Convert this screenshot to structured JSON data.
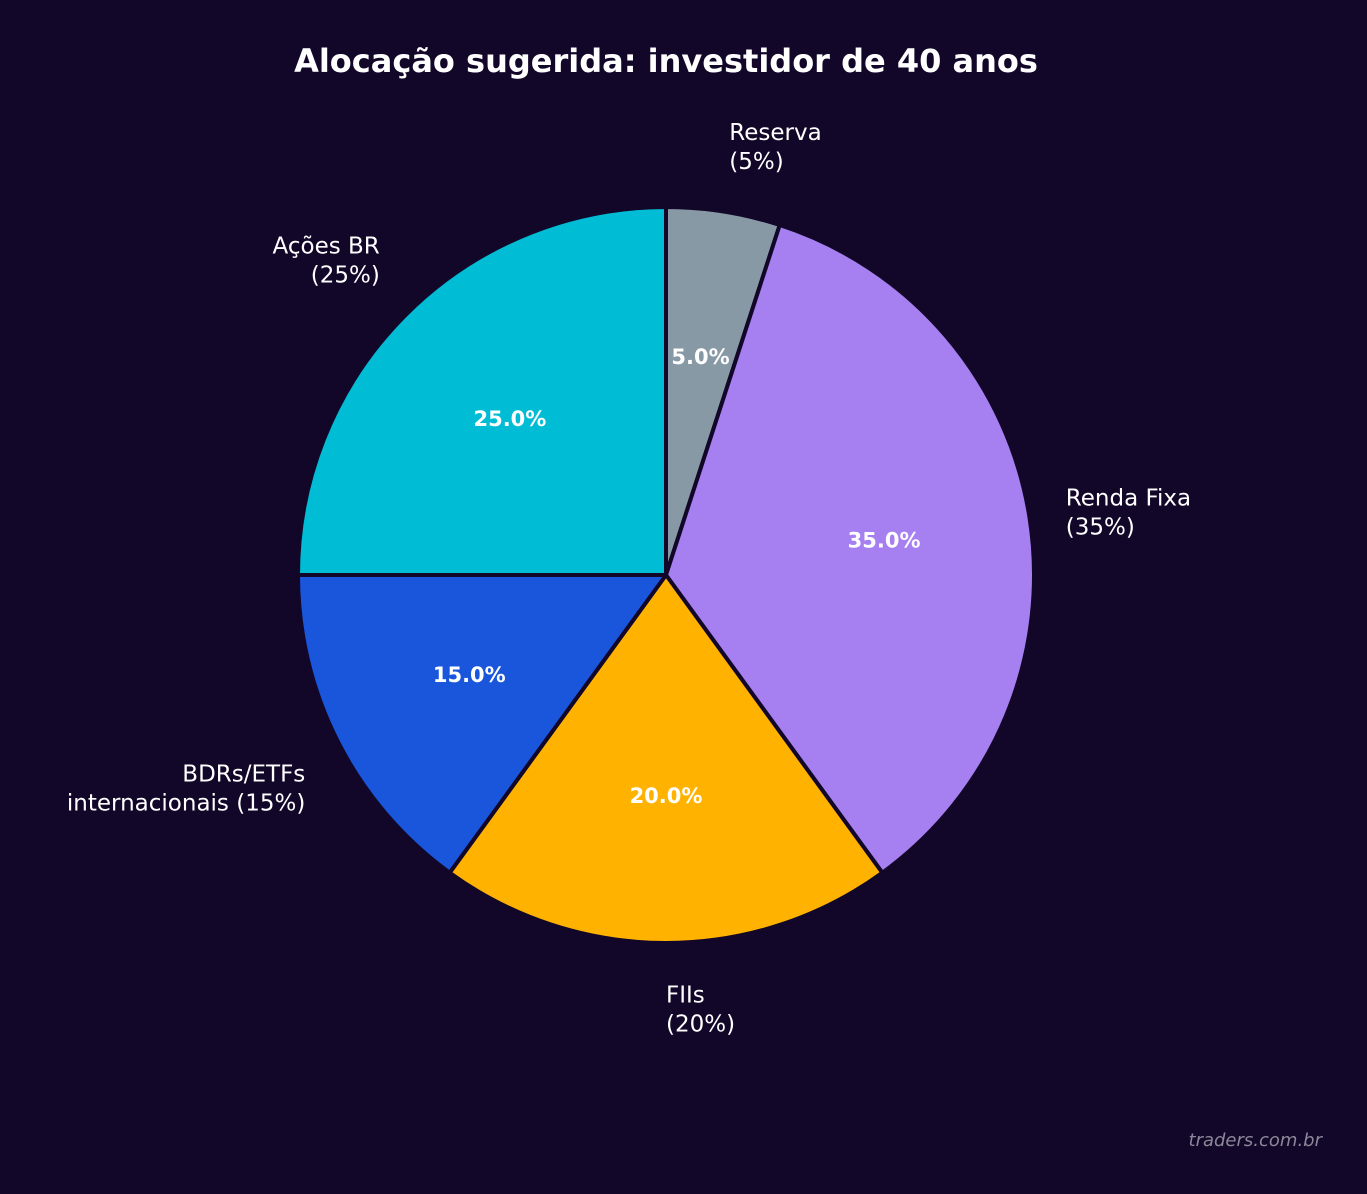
{
  "chart_data": {
    "type": "pie",
    "title": "Alocação sugerida: investidor de 40 anos",
    "start_angle_deg": 90,
    "direction": "clockwise",
    "slices": [
      {
        "label": [
          "Reserva",
          "(5%)"
        ],
        "value": 5,
        "pct_label": "5.0%",
        "color": "#8899a6"
      },
      {
        "label": [
          "Renda Fixa",
          "(35%)"
        ],
        "value": 35,
        "pct_label": "35.0%",
        "color": "#a67ff0"
      },
      {
        "label": [
          "FIIs",
          "(20%)"
        ],
        "value": 20,
        "pct_label": "20.0%",
        "color": "#ffb300"
      },
      {
        "label": [
          "BDRs/ETFs",
          "internacionais (15%)"
        ],
        "value": 15,
        "pct_label": "15.0%",
        "color": "#1a56db"
      },
      {
        "label": [
          "Ações BR",
          "(25%)"
        ],
        "value": 25,
        "pct_label": "25.0%",
        "color": "#00bcd4"
      }
    ],
    "edge_color": "#120729"
  },
  "watermark": "traders.com.br",
  "background_color": "#120729"
}
